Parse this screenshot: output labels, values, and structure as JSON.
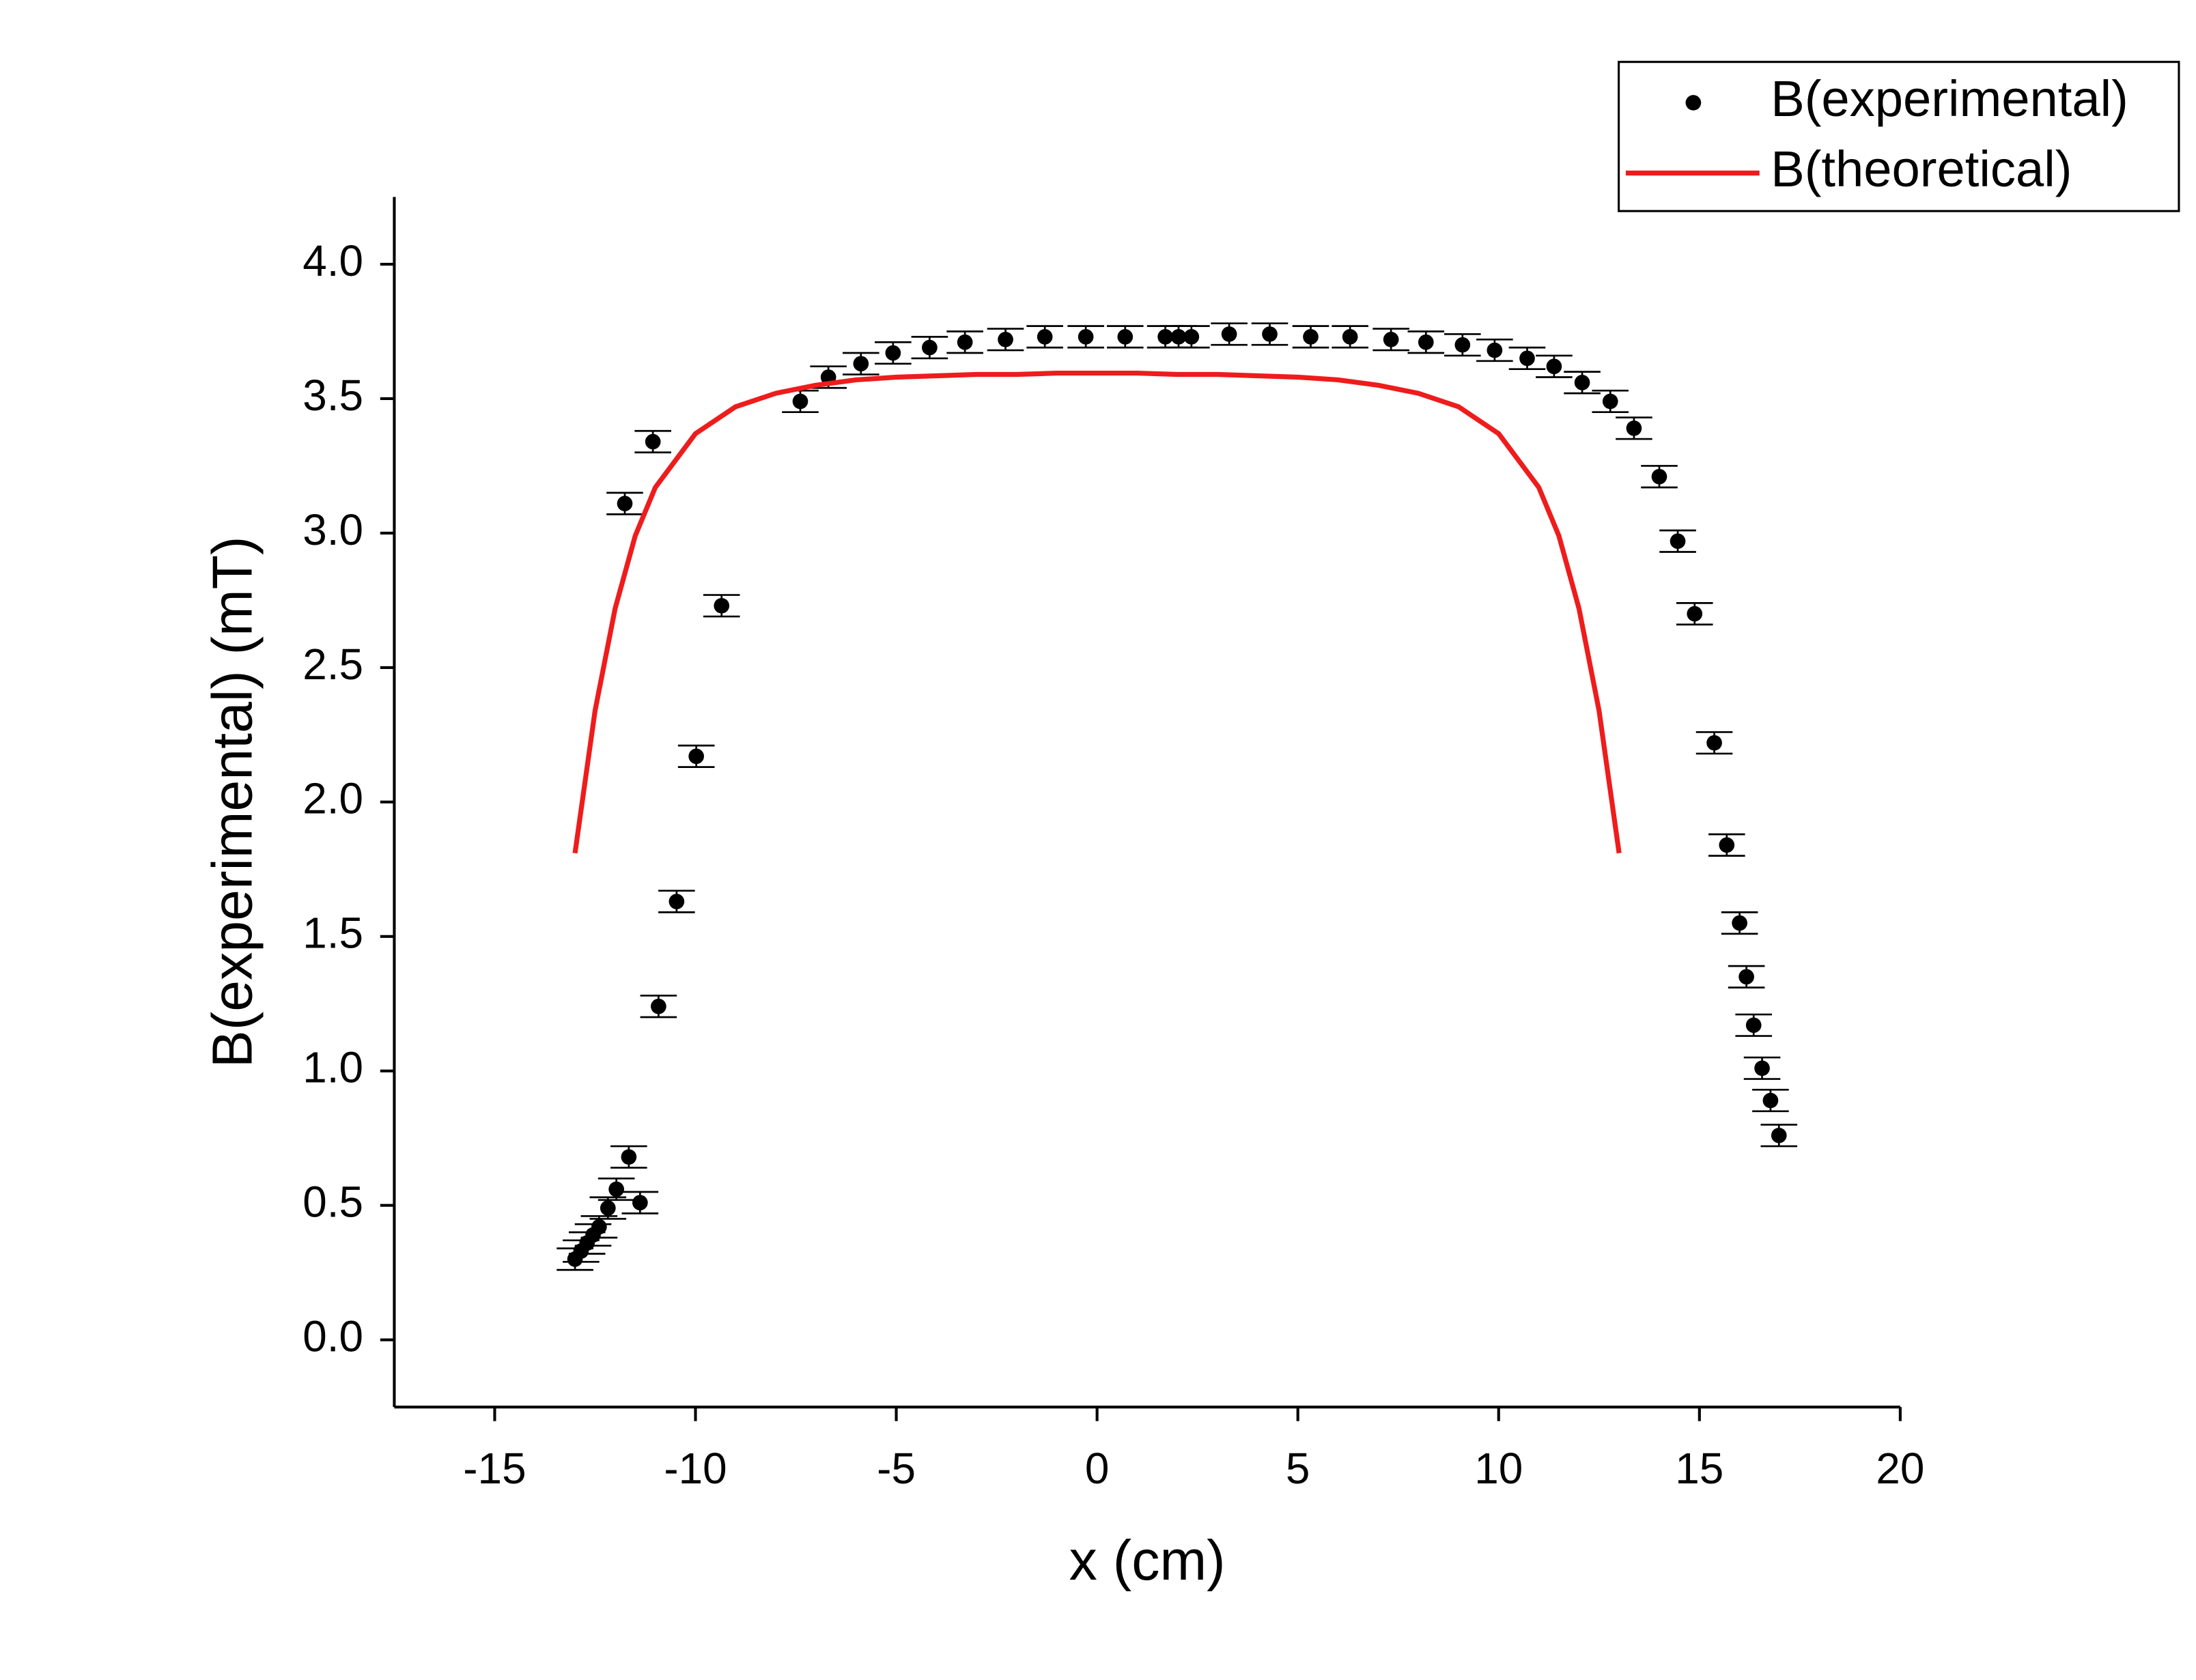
{
  "chart_data": {
    "type": "scatter-line",
    "xlabel": "x (cm)",
    "ylabel": "B(experimental) (mT)",
    "xlim": [
      -17.5,
      20
    ],
    "ylim": [
      -0.25,
      4.25
    ],
    "xticks": [
      -15,
      -10,
      -5,
      0,
      5,
      10,
      15,
      20
    ],
    "yticks": [
      {
        "value": 0,
        "label": "0.0"
      },
      {
        "value": 0.5,
        "label": "0.5"
      },
      {
        "value": 1,
        "label": "1.0"
      },
      {
        "value": 1.5,
        "label": "1.5"
      },
      {
        "value": 2,
        "label": "2.0"
      },
      {
        "value": 2.5,
        "label": "2.5"
      },
      {
        "value": 3,
        "label": "3.0"
      },
      {
        "value": 3.5,
        "label": "3.5"
      },
      {
        "value": 4,
        "label": "4.0"
      }
    ],
    "legend": "top-right",
    "series": [
      {
        "name": "B(experimental)",
        "kind": "scatter",
        "color": "#000000",
        "error": 0.04,
        "x": [
          -13,
          -12.85,
          -12.7,
          -12.55,
          -12.4,
          -12.18,
          -11.97,
          -11.66,
          -11.38,
          -11.76,
          -11.06,
          -10.92,
          -10.47,
          -9.98,
          -9.35,
          -7.39,
          -6.69,
          -5.88,
          -5.08,
          -4.17,
          -3.29,
          -2.28,
          -1.3,
          -0.28,
          0.7,
          1.7,
          2.03,
          2.35,
          3.29,
          4.3,
          5.32,
          6.3,
          7.32,
          8.19,
          9.1,
          9.9,
          10.71,
          11.38,
          12.08,
          12.78,
          13.37,
          14.0,
          14.46,
          14.88,
          15.37,
          15.68,
          16.0,
          16.17,
          16.35,
          16.56,
          16.77,
          16.98
        ],
        "values": [
          0.3,
          0.33,
          0.36,
          0.39,
          0.42,
          0.49,
          0.56,
          0.68,
          0.51,
          3.11,
          3.34,
          1.24,
          1.63,
          2.17,
          2.73,
          3.49,
          3.58,
          3.63,
          3.67,
          3.69,
          3.71,
          3.72,
          3.73,
          3.73,
          3.73,
          3.73,
          3.73,
          3.73,
          3.74,
          3.74,
          3.73,
          3.73,
          3.72,
          3.71,
          3.7,
          3.68,
          3.65,
          3.62,
          3.56,
          3.49,
          3.39,
          3.21,
          2.97,
          2.7,
          2.22,
          1.84,
          1.55,
          1.35,
          1.17,
          1.01,
          0.89,
          0.76
        ]
      },
      {
        "name": "B(theoretical)",
        "kind": "line",
        "color": "#ee1c1c",
        "x": [
          -13,
          -12.5,
          -12,
          -11.5,
          -11,
          -10,
          -9,
          -8,
          -7,
          -6,
          -5,
          -4,
          -3,
          -2,
          -1,
          0,
          1,
          2,
          3,
          4,
          5,
          6,
          7,
          8,
          9,
          10,
          11,
          11.5,
          12,
          12.5,
          13
        ],
        "values": [
          1.81,
          2.34,
          2.72,
          2.99,
          3.17,
          3.37,
          3.47,
          3.52,
          3.55,
          3.57,
          3.58,
          3.585,
          3.59,
          3.59,
          3.595,
          3.595,
          3.595,
          3.59,
          3.59,
          3.585,
          3.58,
          3.57,
          3.55,
          3.52,
          3.47,
          3.37,
          3.17,
          2.99,
          2.72,
          2.34,
          1.81
        ]
      }
    ]
  }
}
